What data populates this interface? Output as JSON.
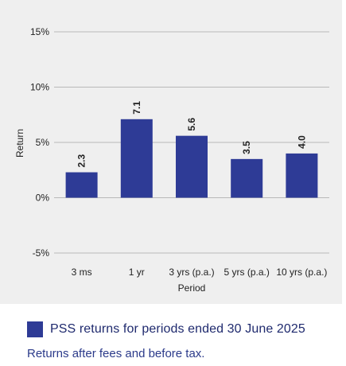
{
  "chart_data": {
    "type": "bar",
    "categories": [
      "3 ms",
      "1 yr",
      "3 yrs (p.a.)",
      "5 yrs (p.a.)",
      "10 yrs (p.a.)"
    ],
    "values": [
      2.3,
      7.1,
      5.6,
      3.5,
      4.0
    ],
    "value_labels": [
      "2.3",
      "7.1",
      "5.6",
      "3.5",
      "4.0"
    ],
    "xlabel": "Period",
    "ylabel": "Return",
    "ylim": [
      -5,
      15
    ],
    "yticks": [
      15,
      10,
      5,
      0,
      -5
    ],
    "ytick_labels": [
      "15%",
      "10%",
      "5%",
      "0%",
      "-5%"
    ],
    "grid": true,
    "bar_color": "#2e3b96",
    "grid_color": "#b8b8b8"
  },
  "legend": {
    "label": "PSS returns for periods ended 30 June 2025",
    "color": "#2e3b96"
  },
  "footnote": "Returns after fees and before tax."
}
